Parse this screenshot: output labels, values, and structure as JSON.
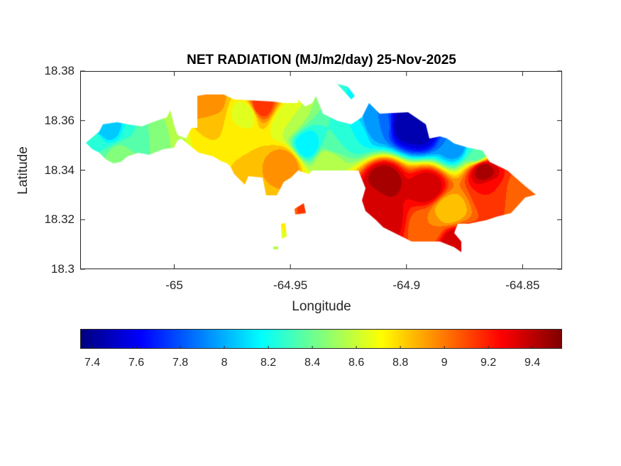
{
  "chart_data": {
    "type": "heatmap",
    "title": "NET RADIATION (MJ/m2/day) 25-Nov-2025",
    "xlabel": "Longitude",
    "ylabel": "Latitude",
    "xlim": [
      -65.0405,
      -64.833
    ],
    "ylim": [
      18.3,
      18.38
    ],
    "xticks": [
      -65,
      -64.95,
      -64.9,
      -64.85
    ],
    "xtick_labels": [
      "-65",
      "-64.95",
      "-64.9",
      "-64.85"
    ],
    "yticks": [
      18.38,
      18.36,
      18.34,
      18.32,
      18.3
    ],
    "ytick_labels": [
      "18.38",
      "18.36",
      "18.34",
      "18.32",
      "18.3"
    ],
    "colormap": "jet",
    "colorbar": {
      "location": "bottom",
      "clim": [
        7.345,
        9.535
      ],
      "ticks": [
        7.4,
        7.6,
        7.8,
        8,
        8.2,
        8.4,
        8.6,
        8.8,
        9,
        9.2,
        9.4
      ],
      "tick_labels": [
        "7.4",
        "7.6",
        "7.8",
        "8",
        "8.2",
        "8.4",
        "8.6",
        "8.8",
        "9",
        "9.2",
        "9.4"
      ]
    },
    "grid": false,
    "samples": [
      {
        "lon": -65.029,
        "lat": 18.357,
        "value": 8.0
      },
      {
        "lon": -65.035,
        "lat": 18.351,
        "value": 8.3
      },
      {
        "lon": -65.017,
        "lat": 18.353,
        "value": 8.3
      },
      {
        "lon": -65.005,
        "lat": 18.354,
        "value": 8.5
      },
      {
        "lon": -65.023,
        "lat": 18.345,
        "value": 8.5
      },
      {
        "lon": -64.986,
        "lat": 18.367,
        "value": 9.0
      },
      {
        "lon": -64.983,
        "lat": 18.357,
        "value": 8.8
      },
      {
        "lon": -64.974,
        "lat": 18.351,
        "value": 8.8
      },
      {
        "lon": -64.963,
        "lat": 18.366,
        "value": 9.2
      },
      {
        "lon": -64.969,
        "lat": 18.363,
        "value": 8.6
      },
      {
        "lon": -64.952,
        "lat": 18.36,
        "value": 8.6
      },
      {
        "lon": -64.952,
        "lat": 18.343,
        "value": 9.0
      },
      {
        "lon": -64.959,
        "lat": 18.333,
        "value": 8.9
      },
      {
        "lon": -64.943,
        "lat": 18.35,
        "value": 8.1
      },
      {
        "lon": -64.931,
        "lat": 18.351,
        "value": 8.3
      },
      {
        "lon": -64.922,
        "lat": 18.354,
        "value": 8.2
      },
      {
        "lon": -64.913,
        "lat": 18.358,
        "value": 7.9
      },
      {
        "lon": -64.9,
        "lat": 18.358,
        "value": 7.4
      },
      {
        "lon": -64.894,
        "lat": 18.356,
        "value": 7.45
      },
      {
        "lon": -64.879,
        "lat": 18.35,
        "value": 7.9
      },
      {
        "lon": -64.87,
        "lat": 18.347,
        "value": 8.3
      },
      {
        "lon": -64.934,
        "lat": 18.344,
        "value": 8.6
      },
      {
        "lon": -64.91,
        "lat": 18.336,
        "value": 9.5
      },
      {
        "lon": -64.891,
        "lat": 18.333,
        "value": 9.4
      },
      {
        "lon": -64.867,
        "lat": 18.34,
        "value": 9.45
      },
      {
        "lon": -64.8635,
        "lat": 18.331,
        "value": 9.2
      },
      {
        "lon": -64.851,
        "lat": 18.33,
        "value": 9.0
      },
      {
        "lon": -64.882,
        "lat": 18.324,
        "value": 8.8
      },
      {
        "lon": -64.91,
        "lat": 18.32,
        "value": 9.4
      },
      {
        "lon": -64.891,
        "lat": 18.317,
        "value": 9.0
      },
      {
        "lon": -64.879,
        "lat": 18.311,
        "value": 9.4
      },
      {
        "lon": -64.916,
        "lat": 18.328,
        "value": 9.3
      },
      {
        "lon": -64.94,
        "lat": 18.322,
        "value": 9.2
      },
      {
        "lon": -64.954,
        "lat": 18.315,
        "value": 8.7
      },
      {
        "lon": -64.957,
        "lat": 18.306,
        "value": 8.5
      }
    ]
  }
}
